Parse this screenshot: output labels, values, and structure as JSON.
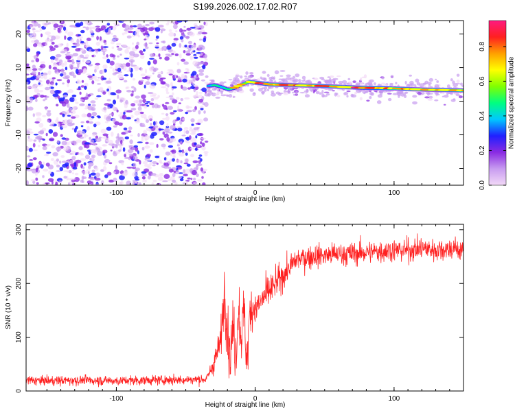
{
  "figure_title": "S199.2026.002.17.02.R07",
  "chart_data": [
    {
      "type": "heatmap",
      "title": "S199.2026.002.17.02.R07",
      "xlabel": "Height of straight line (km)",
      "ylabel": "Frequency (Hz)",
      "xlim": [
        -165,
        150
      ],
      "ylim": [
        -25,
        24
      ],
      "xticks": [
        -100,
        0,
        100
      ],
      "xtick_labels": [
        "-100",
        "0",
        "100"
      ],
      "yticks": [
        -20,
        -10,
        0,
        10,
        20
      ],
      "ytick_labels": [
        "-20",
        "-10",
        "0",
        "10",
        "20"
      ],
      "noise_region": {
        "x_start": -165,
        "x_end": -35,
        "description": "random noise amplitude 0.0-0.3"
      },
      "signal_trace": {
        "x": [
          -35,
          -30,
          -25,
          -20,
          -15,
          -10,
          -5,
          0,
          10,
          25,
          50,
          75,
          100,
          125,
          150
        ],
        "frequency": [
          4.5,
          4.8,
          4.2,
          3.5,
          4.0,
          5.0,
          5.8,
          5.5,
          5.0,
          4.8,
          4.5,
          4.0,
          3.8,
          3.4,
          3.2
        ],
        "peak_amplitude": [
          0.5,
          0.6,
          0.55,
          0.6,
          0.7,
          0.75,
          0.8,
          0.9,
          0.85,
          0.85,
          0.8,
          0.9,
          0.85,
          0.8,
          0.75
        ]
      },
      "colorbar": {
        "label": "Normalized spectral amplitude",
        "range": [
          0.0,
          0.95
        ],
        "ticks": [
          0.0,
          0.2,
          0.4,
          0.6,
          0.8
        ],
        "tick_labels": [
          "0.0",
          "0.2",
          "0.4",
          "0.6",
          "0.8"
        ],
        "colors": [
          "#f2d9f7",
          "#c89cf0",
          "#8a2be2",
          "#2020ff",
          "#00c8ff",
          "#00ff80",
          "#80ff00",
          "#ffff00",
          "#ffa000",
          "#ff2020",
          "#ff1a80"
        ]
      }
    },
    {
      "type": "line",
      "xlabel": "Height of straight line (km)",
      "ylabel": "SNR (10 * v/v)",
      "xlim": [
        -165,
        150
      ],
      "ylim": [
        0,
        310
      ],
      "xticks": [
        -100,
        0,
        100
      ],
      "xtick_labels": [
        "-100",
        "0",
        "100"
      ],
      "yticks": [
        0,
        100,
        200,
        300
      ],
      "ytick_labels": [
        "0",
        "100",
        "200",
        "300"
      ],
      "color": "#ff2020",
      "series": [
        {
          "name": "SNR",
          "x": [
            -165,
            -150,
            -125,
            -100,
            -75,
            -50,
            -35,
            -30,
            -25,
            -22,
            -20,
            -18,
            -16,
            -14,
            -12,
            -10,
            -8,
            -6,
            -4,
            -2,
            0,
            5,
            10,
            15,
            20,
            25,
            30,
            40,
            50,
            60,
            70,
            80,
            90,
            100,
            110,
            120,
            130,
            140,
            150
          ],
          "values": [
            20,
            19,
            20,
            19,
            20,
            21,
            22,
            50,
            90,
            190,
            120,
            60,
            120,
            70,
            160,
            100,
            150,
            50,
            140,
            160,
            150,
            170,
            185,
            200,
            215,
            230,
            245,
            250,
            252,
            255,
            255,
            258,
            260,
            262,
            262,
            265,
            262,
            265,
            262
          ],
          "noise_std": [
            7,
            7,
            7,
            7,
            7,
            7,
            7,
            15,
            25,
            45,
            45,
            45,
            45,
            45,
            45,
            40,
            40,
            40,
            35,
            30,
            28,
            26,
            25,
            22,
            20,
            18,
            18,
            17,
            17,
            17,
            17,
            17,
            17,
            17,
            17,
            17,
            17,
            17,
            17
          ]
        }
      ]
    }
  ]
}
